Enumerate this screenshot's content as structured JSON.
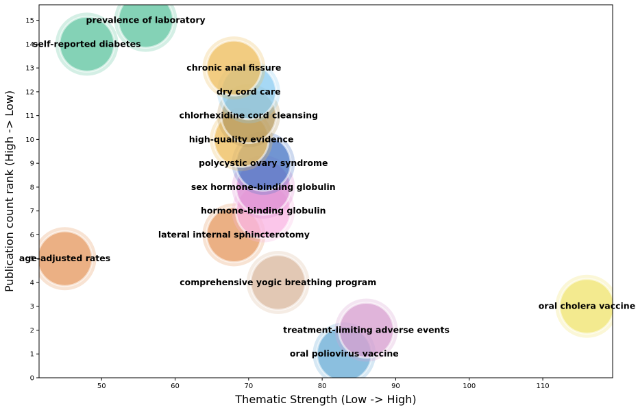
{
  "chart_data": {
    "type": "scatter",
    "title": "",
    "xlabel": "Thematic Strength (Low -> High)",
    "ylabel": "Publication count rank (High -> Low)",
    "xlim": [
      41.5,
      119.5
    ],
    "ylim": [
      0,
      15.65
    ],
    "xticks": [
      50,
      60,
      70,
      80,
      90,
      100,
      110
    ],
    "yticks": [
      0,
      1,
      2,
      3,
      4,
      5,
      6,
      7,
      8,
      9,
      10,
      11,
      12,
      13,
      14,
      15
    ],
    "grid": false,
    "legend": "none",
    "points": [
      {
        "label": "oral poliovirus vaccine",
        "x": 83,
        "y": 1,
        "color": "#6baed6"
      },
      {
        "label": "treatment-limiting adverse events",
        "x": 86,
        "y": 2,
        "color": "#d7a0d0"
      },
      {
        "label": "oral cholera vaccine",
        "x": 116,
        "y": 3,
        "color": "#f0e470"
      },
      {
        "label": "comprehensive yogic breathing program",
        "x": 74,
        "y": 4,
        "color": "#dab99f"
      },
      {
        "label": "age-adjusted rates",
        "x": 45,
        "y": 5,
        "color": "#e59a62"
      },
      {
        "label": "lateral internal sphincterotomy",
        "x": 68,
        "y": 6,
        "color": "#e59a62"
      },
      {
        "label": "hormone-binding globulin",
        "x": 72,
        "y": 7,
        "color": "#f9b6e4"
      },
      {
        "label": "sex hormone-binding globulin",
        "x": 72,
        "y": 8,
        "color": "#dd8fd3"
      },
      {
        "label": "polycystic ovary syndrome",
        "x": 72,
        "y": 9,
        "color": "#4a78c6"
      },
      {
        "label": "high-quality evidence",
        "x": 69,
        "y": 10,
        "color": "#eebd5e"
      },
      {
        "label": "chlorhexidine cord cleansing",
        "x": 70,
        "y": 11,
        "color": "#b89b61"
      },
      {
        "label": "dry cord care",
        "x": 70,
        "y": 12,
        "color": "#8dcdf2"
      },
      {
        "label": "chronic anal fissure",
        "x": 68,
        "y": 13,
        "color": "#eebd5e"
      },
      {
        "label": "self-reported diabetes",
        "x": 48,
        "y": 14,
        "color": "#63c6a3"
      },
      {
        "label": "prevalence of laboratory",
        "x": 56,
        "y": 15,
        "color": "#63c6a3"
      }
    ]
  }
}
